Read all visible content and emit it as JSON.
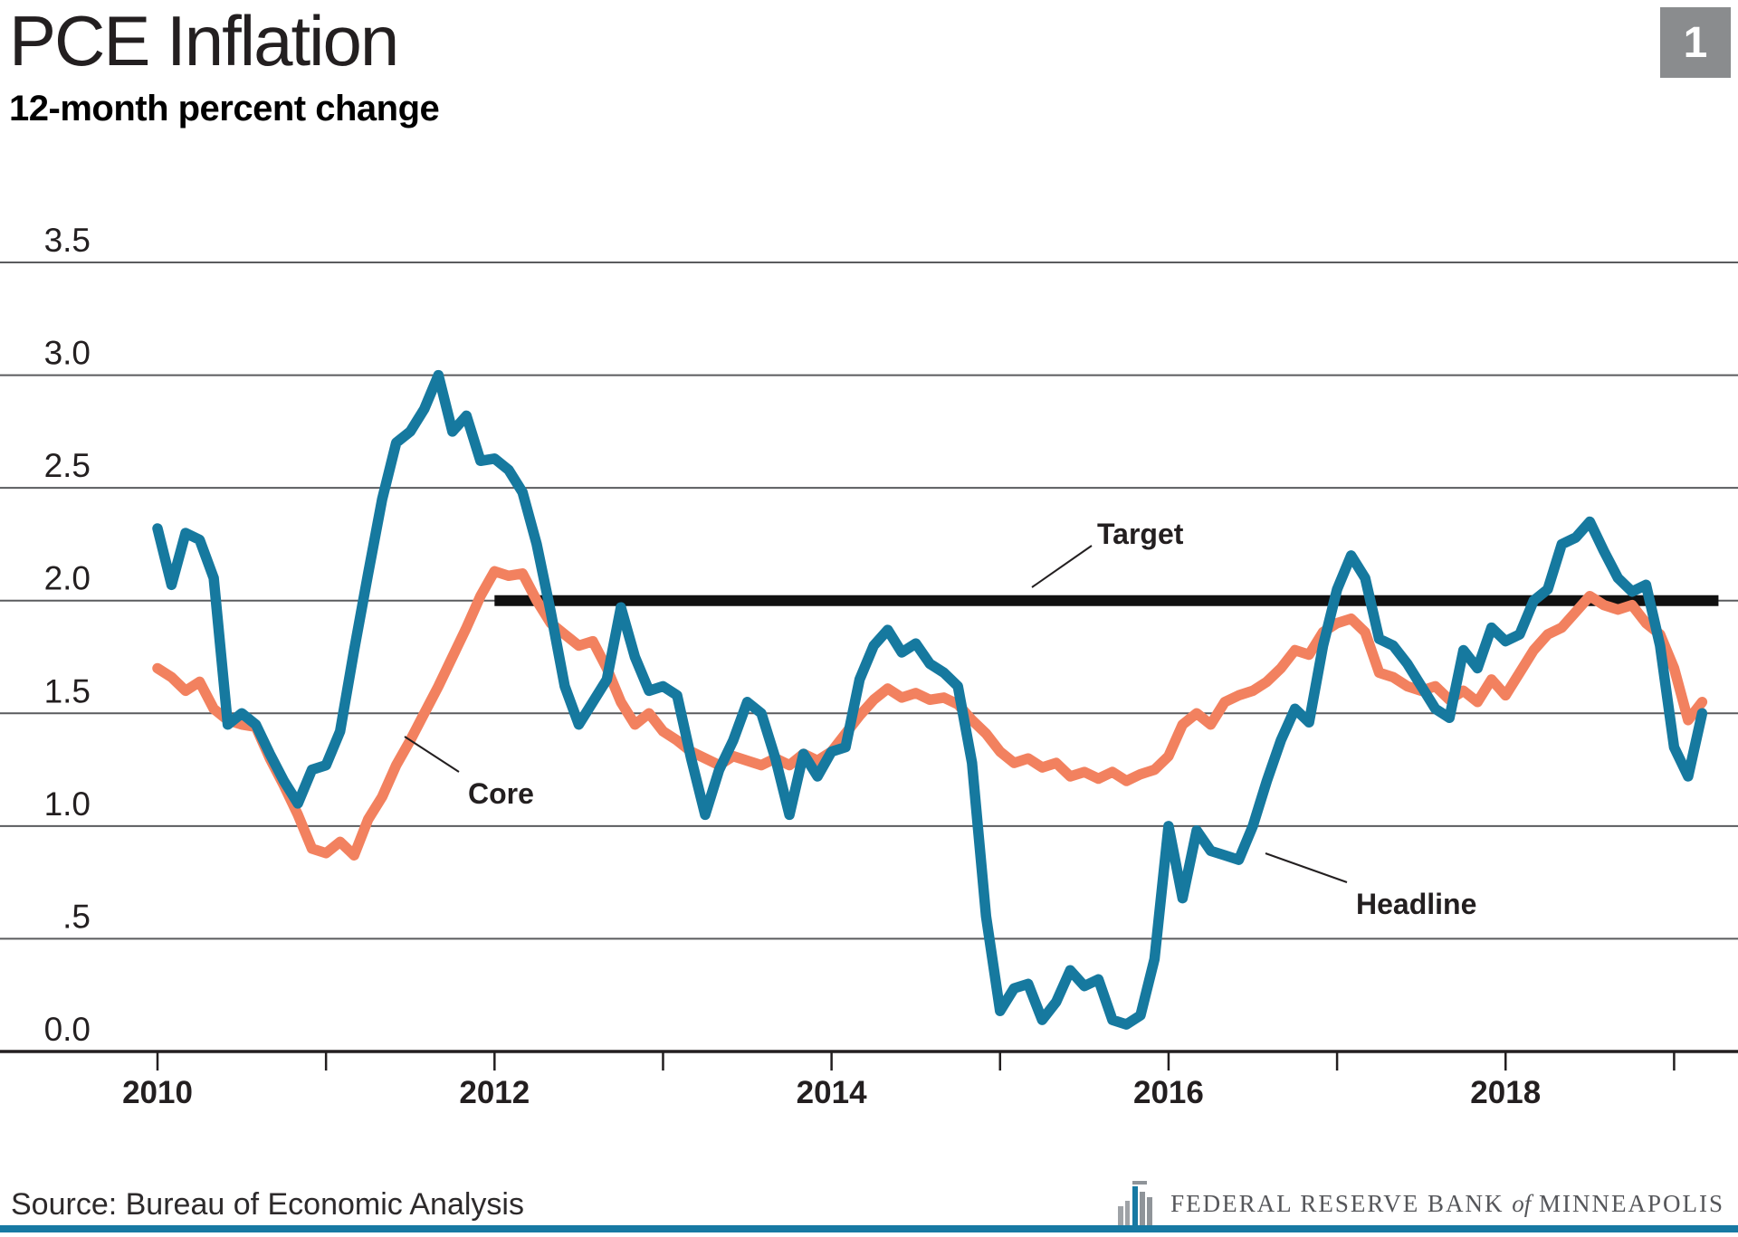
{
  "header": {
    "title": "PCE Inflation",
    "subtitle": "12-month percent change",
    "slide_number": "1"
  },
  "footer": {
    "source": "Source: Bureau of Economic Analysis",
    "logo_text_bank": "FEDERAL RESERVE BANK",
    "logo_text_of": "of",
    "logo_text_city": "MINNEAPOLIS"
  },
  "chart_data": {
    "type": "line",
    "title": "PCE Inflation",
    "ylabel": "12-month percent change",
    "frequency": "monthly",
    "x_start": "2010-01",
    "x_end": "2019-03",
    "ylim": [
      0.0,
      3.5
    ],
    "grid": true,
    "y_ticks": [
      {
        "v": 0.0,
        "label": "0.0"
      },
      {
        "v": 0.5,
        "label": ".5"
      },
      {
        "v": 1.0,
        "label": "1.0"
      },
      {
        "v": 1.5,
        "label": "1.5"
      },
      {
        "v": 2.0,
        "label": "2.0"
      },
      {
        "v": 2.5,
        "label": "2.5"
      },
      {
        "v": 3.0,
        "label": "3.0"
      },
      {
        "v": 3.5,
        "label": "3.5"
      }
    ],
    "x_tick_years": [
      2010,
      2011,
      2012,
      2013,
      2014,
      2015,
      2016,
      2017,
      2018,
      2019
    ],
    "x_labeled_years": [
      2010,
      2012,
      2014,
      2016,
      2018
    ],
    "target": {
      "label": "Target",
      "value": 2.0,
      "start": "2012-01",
      "color": "#111111"
    },
    "series": [
      {
        "name": "Core",
        "color": "#f2815f",
        "values": [
          1.7,
          1.66,
          1.6,
          1.64,
          1.52,
          1.47,
          1.45,
          1.44,
          1.3,
          1.18,
          1.05,
          0.9,
          0.88,
          0.93,
          0.87,
          1.03,
          1.13,
          1.27,
          1.38,
          1.5,
          1.62,
          1.75,
          1.88,
          2.02,
          2.13,
          2.11,
          2.12,
          2.0,
          1.9,
          1.85,
          1.8,
          1.82,
          1.7,
          1.55,
          1.45,
          1.5,
          1.42,
          1.38,
          1.33,
          1.3,
          1.27,
          1.31,
          1.29,
          1.27,
          1.3,
          1.27,
          1.32,
          1.29,
          1.33,
          1.41,
          1.49,
          1.56,
          1.61,
          1.57,
          1.59,
          1.56,
          1.57,
          1.54,
          1.47,
          1.41,
          1.33,
          1.28,
          1.3,
          1.26,
          1.28,
          1.22,
          1.24,
          1.21,
          1.24,
          1.2,
          1.23,
          1.25,
          1.31,
          1.45,
          1.5,
          1.45,
          1.55,
          1.58,
          1.6,
          1.64,
          1.7,
          1.78,
          1.76,
          1.86,
          1.9,
          1.92,
          1.86,
          1.68,
          1.66,
          1.62,
          1.6,
          1.62,
          1.56,
          1.6,
          1.55,
          1.65,
          1.58,
          1.68,
          1.78,
          1.85,
          1.88,
          1.95,
          2.02,
          1.98,
          1.96,
          1.98,
          1.9,
          1.85,
          1.7,
          1.47,
          1.55
        ]
      },
      {
        "name": "Headline",
        "color": "#16799f",
        "values": [
          2.32,
          2.07,
          2.3,
          2.27,
          2.1,
          1.45,
          1.5,
          1.45,
          1.32,
          1.2,
          1.1,
          1.25,
          1.27,
          1.42,
          1.78,
          2.12,
          2.45,
          2.7,
          2.75,
          2.85,
          3.0,
          2.75,
          2.82,
          2.62,
          2.63,
          2.58,
          2.48,
          2.25,
          1.95,
          1.62,
          1.45,
          1.55,
          1.65,
          1.97,
          1.75,
          1.6,
          1.62,
          1.58,
          1.3,
          1.05,
          1.25,
          1.38,
          1.55,
          1.5,
          1.3,
          1.05,
          1.32,
          1.22,
          1.33,
          1.35,
          1.65,
          1.8,
          1.87,
          1.77,
          1.81,
          1.72,
          1.68,
          1.62,
          1.28,
          0.6,
          0.18,
          0.28,
          0.3,
          0.14,
          0.22,
          0.36,
          0.29,
          0.32,
          0.14,
          0.12,
          0.16,
          0.41,
          1.0,
          0.68,
          0.98,
          0.89,
          0.87,
          0.85,
          1.0,
          1.2,
          1.38,
          1.52,
          1.46,
          1.8,
          2.05,
          2.2,
          2.1,
          1.83,
          1.8,
          1.72,
          1.62,
          1.52,
          1.48,
          1.78,
          1.7,
          1.88,
          1.82,
          1.85,
          2.0,
          2.05,
          2.25,
          2.28,
          2.35,
          2.22,
          2.1,
          2.04,
          2.07,
          1.8,
          1.35,
          1.22,
          1.5
        ]
      }
    ],
    "annotations": [
      {
        "id": "target",
        "label": "Target"
      },
      {
        "id": "core",
        "label": "Core"
      },
      {
        "id": "headline",
        "label": "Headline"
      }
    ],
    "layout_hints": {
      "grid_color": "#5a5b5e",
      "axis_color": "#231f20",
      "label_color": "#231f20",
      "legend": "inline-annotations",
      "gridlines_full_width": true
    }
  }
}
